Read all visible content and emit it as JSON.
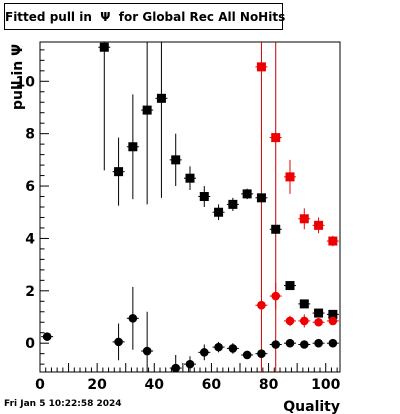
{
  "title": "Fitted pull in  Ψ  for Global Rec All NoHits",
  "footer": "Fri Jan  5 10:22:58 2024",
  "chart_data": {
    "type": "scatter",
    "title": "Fitted pull in  Ψ  for Global Rec All NoHits",
    "xlabel": "Quality",
    "ylabel": "pull in  Ψ",
    "xlim": [
      0,
      105
    ],
    "ylim": [
      -1.1,
      11.5
    ],
    "x_ticks": [
      0,
      20,
      40,
      60,
      80,
      100
    ],
    "y_ticks": [
      0,
      2,
      4,
      6,
      8,
      10
    ],
    "grid": false,
    "vertical_lines": [
      {
        "x": 77.5,
        "color": "#cc0000"
      },
      {
        "x": 82.5,
        "color": "#cc0000"
      }
    ],
    "series": [
      {
        "marker": "square",
        "color": "#000000",
        "points": [
          {
            "x": 22.5,
            "y": 11.3,
            "err": 4.7
          },
          {
            "x": 27.5,
            "y": 6.55,
            "err": 1.3
          },
          {
            "x": 32.5,
            "y": 7.5,
            "err": 2.0
          },
          {
            "x": 37.5,
            "y": 8.9,
            "err": 3.6
          },
          {
            "x": 42.5,
            "y": 9.35,
            "err": 3.8
          },
          {
            "x": 47.5,
            "y": 7.0,
            "err": 1.0
          },
          {
            "x": 52.5,
            "y": 6.3,
            "err": 0.45
          },
          {
            "x": 57.5,
            "y": 5.6,
            "err": 0.4
          },
          {
            "x": 62.5,
            "y": 5.0,
            "err": 0.3
          },
          {
            "x": 67.5,
            "y": 5.3,
            "err": 0.25
          },
          {
            "x": 72.5,
            "y": 5.7,
            "err": 0.2
          },
          {
            "x": 77.5,
            "y": 5.55,
            "err": 0.15
          },
          {
            "x": 82.5,
            "y": 4.35,
            "err": 0.15
          },
          {
            "x": 87.5,
            "y": 2.2,
            "err": 0.1
          },
          {
            "x": 92.5,
            "y": 1.5,
            "err": 0.1
          },
          {
            "x": 97.5,
            "y": 1.15,
            "err": 0.1
          },
          {
            "x": 102.5,
            "y": 1.1,
            "err": 0.1
          }
        ]
      },
      {
        "marker": "circle",
        "color": "#000000",
        "points": [
          {
            "x": 2.5,
            "y": 0.25,
            "err": 0.1
          },
          {
            "x": 27.5,
            "y": 0.05,
            "err": 0.7
          },
          {
            "x": 32.5,
            "y": 0.95,
            "err": 1.2
          },
          {
            "x": 37.5,
            "y": -0.3,
            "err": 1.5
          },
          {
            "x": 47.5,
            "y": -0.95,
            "err": 0.5
          },
          {
            "x": 52.5,
            "y": -0.8,
            "err": 0.3
          },
          {
            "x": 57.5,
            "y": -0.35,
            "err": 0.3
          },
          {
            "x": 62.5,
            "y": -0.15,
            "err": 0.2
          },
          {
            "x": 67.5,
            "y": -0.2,
            "err": 0.2
          },
          {
            "x": 72.5,
            "y": -0.45,
            "err": 0.15
          },
          {
            "x": 77.5,
            "y": -0.4,
            "err": 0.15
          },
          {
            "x": 82.5,
            "y": -0.05,
            "err": 0.1
          },
          {
            "x": 87.5,
            "y": 0.0,
            "err": 0.1
          },
          {
            "x": 92.5,
            "y": -0.05,
            "err": 0.1
          },
          {
            "x": 97.5,
            "y": 0.0,
            "err": 0.1
          },
          {
            "x": 102.5,
            "y": 0.0,
            "err": 0.1
          }
        ]
      },
      {
        "marker": "square",
        "color": "#ee0000",
        "points": [
          {
            "x": 77.5,
            "y": 10.55,
            "err": 0.15
          },
          {
            "x": 82.5,
            "y": 7.85,
            "err": 0.2
          },
          {
            "x": 87.5,
            "y": 6.35,
            "err": 0.65
          },
          {
            "x": 92.5,
            "y": 4.75,
            "err": 0.4
          },
          {
            "x": 97.5,
            "y": 4.5,
            "err": 0.3
          },
          {
            "x": 102.5,
            "y": 3.9,
            "err": 0.2
          }
        ]
      },
      {
        "marker": "circle",
        "color": "#ee0000",
        "points": [
          {
            "x": 77.5,
            "y": 1.45,
            "err": 0.15
          },
          {
            "x": 82.5,
            "y": 1.8,
            "err": 0.5
          },
          {
            "x": 87.5,
            "y": 0.85,
            "err": 0.2
          },
          {
            "x": 92.5,
            "y": 0.85,
            "err": 0.25
          },
          {
            "x": 97.5,
            "y": 0.8,
            "err": 0.15
          },
          {
            "x": 102.5,
            "y": 0.85,
            "err": 0.15
          }
        ]
      }
    ]
  }
}
